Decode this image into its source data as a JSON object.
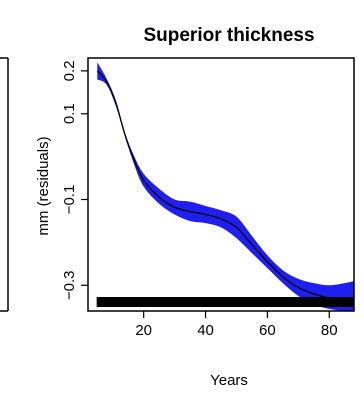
{
  "chart_data": {
    "type": "line",
    "title": "Superior thickness",
    "xlabel": "Years",
    "ylabel": "mm (residuals)",
    "xlim": [
      2,
      88
    ],
    "ylim": [
      -0.36,
      0.23
    ],
    "xticks": [
      20,
      40,
      60,
      80
    ],
    "yticks": [
      0.2,
      0.1,
      -0.1,
      -0.3
    ],
    "grid": false,
    "colors": {
      "band": "#1f1ff0",
      "line": "#000000"
    },
    "series": [
      {
        "x": [
          5,
          8,
          11,
          14,
          17,
          20,
          25,
          30,
          35,
          40,
          45,
          50,
          55,
          60,
          65,
          70,
          75,
          80,
          85,
          88
        ],
        "y": [
          0.2,
          0.175,
          0.125,
          0.05,
          -0.01,
          -0.055,
          -0.095,
          -0.118,
          -0.128,
          -0.135,
          -0.145,
          -0.165,
          -0.205,
          -0.245,
          -0.28,
          -0.305,
          -0.32,
          -0.33,
          -0.335,
          -0.337
        ],
        "lower": [
          0.18,
          0.168,
          0.118,
          0.045,
          -0.02,
          -0.07,
          -0.11,
          -0.135,
          -0.15,
          -0.155,
          -0.165,
          -0.19,
          -0.225,
          -0.26,
          -0.295,
          -0.325,
          -0.345,
          -0.355,
          -0.36,
          -0.36
        ],
        "upper": [
          0.22,
          0.182,
          0.132,
          0.055,
          0.0,
          -0.04,
          -0.075,
          -0.1,
          -0.105,
          -0.115,
          -0.125,
          -0.14,
          -0.185,
          -0.23,
          -0.265,
          -0.285,
          -0.295,
          -0.3,
          -0.295,
          -0.29
        ]
      }
    ],
    "rug": [
      5,
      6,
      7,
      8,
      9,
      10,
      11,
      12,
      13,
      14,
      15,
      16,
      17,
      18,
      19,
      20,
      21,
      22,
      23,
      24,
      25,
      26,
      27,
      28,
      29,
      30,
      31,
      32,
      33,
      34,
      35,
      36,
      37,
      38,
      39,
      40,
      41,
      42,
      43,
      44,
      45,
      46,
      47,
      48,
      49,
      50,
      51,
      52,
      53,
      54,
      55,
      56,
      57,
      58,
      59,
      60,
      61,
      62,
      63,
      64,
      65,
      66,
      67,
      68,
      69,
      70,
      71,
      72,
      73,
      74,
      75,
      76,
      77,
      78,
      79,
      80,
      81,
      82,
      83,
      84,
      85,
      86,
      87
    ]
  }
}
